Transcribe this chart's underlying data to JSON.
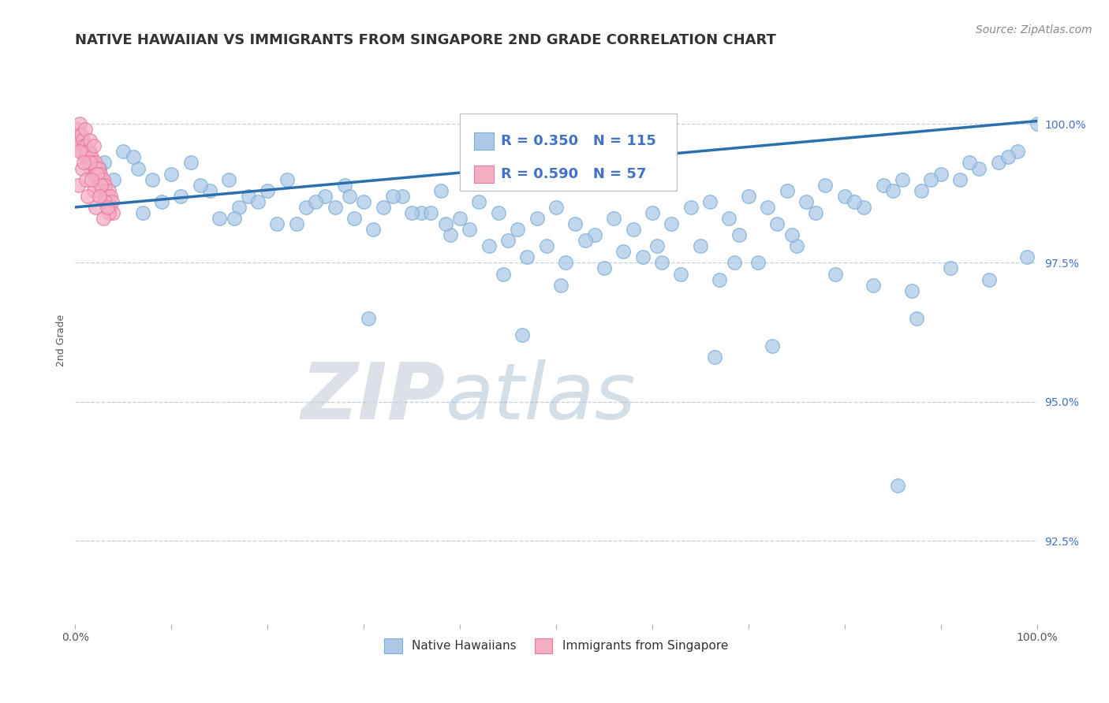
{
  "title": "NATIVE HAWAIIAN VS IMMIGRANTS FROM SINGAPORE 2ND GRADE CORRELATION CHART",
  "source_text": "Source: ZipAtlas.com",
  "ylabel": "2nd Grade",
  "watermark_zip": "ZIP",
  "watermark_atlas": "atlas",
  "xlim": [
    0.0,
    100.0
  ],
  "ylim": [
    91.0,
    101.2
  ],
  "yticks": [
    92.5,
    95.0,
    97.5,
    100.0
  ],
  "ytick_labels": [
    "92.5%",
    "95.0%",
    "97.5%",
    "100.0%"
  ],
  "legend_r1": "R = 0.350",
  "legend_n1": "N = 115",
  "legend_r2": "R = 0.590",
  "legend_n2": "N = 57",
  "blue_color": "#aec9e8",
  "pink_color": "#f4afc3",
  "blue_edge": "#7aaed6",
  "pink_edge": "#e87aa0",
  "trend_color": "#2c6fad",
  "trend_x0": 0.0,
  "trend_x1": 100.0,
  "trend_y0": 98.5,
  "trend_y1": 100.05,
  "dashed_color": "#c0c8d8",
  "blue_scatter_x": [
    1.5,
    3.0,
    5.0,
    6.5,
    8.0,
    10.0,
    12.0,
    14.0,
    16.0,
    18.0,
    20.0,
    22.0,
    24.0,
    26.0,
    28.0,
    30.0,
    32.0,
    34.0,
    36.0,
    38.0,
    40.0,
    42.0,
    44.0,
    46.0,
    48.0,
    50.0,
    52.0,
    54.0,
    56.0,
    58.0,
    60.0,
    62.0,
    64.0,
    66.0,
    68.0,
    70.0,
    72.0,
    74.0,
    76.0,
    78.0,
    80.0,
    82.0,
    84.0,
    86.0,
    88.0,
    90.0,
    92.0,
    94.0,
    96.0,
    98.0,
    100.0,
    4.0,
    9.0,
    13.0,
    17.0,
    21.0,
    25.0,
    29.0,
    33.0,
    37.0,
    41.0,
    45.0,
    49.0,
    53.0,
    57.0,
    61.0,
    65.0,
    69.0,
    73.0,
    77.0,
    81.0,
    85.0,
    89.0,
    93.0,
    97.0,
    7.0,
    11.0,
    15.0,
    19.0,
    23.0,
    27.0,
    31.0,
    35.0,
    39.0,
    43.0,
    47.0,
    51.0,
    55.0,
    59.0,
    63.0,
    67.0,
    71.0,
    75.0,
    79.0,
    83.0,
    87.0,
    91.0,
    95.0,
    99.0,
    2.5,
    6.0,
    16.5,
    28.5,
    38.5,
    44.5,
    50.5,
    60.5,
    68.5,
    74.5,
    85.5,
    30.5,
    46.5,
    66.5,
    72.5,
    87.5
  ],
  "blue_scatter_y": [
    99.5,
    99.3,
    99.5,
    99.2,
    99.0,
    99.1,
    99.3,
    98.8,
    99.0,
    98.7,
    98.8,
    99.0,
    98.5,
    98.7,
    98.9,
    98.6,
    98.5,
    98.7,
    98.4,
    98.8,
    98.3,
    98.6,
    98.4,
    98.1,
    98.3,
    98.5,
    98.2,
    98.0,
    98.3,
    98.1,
    98.4,
    98.2,
    98.5,
    98.6,
    98.3,
    98.7,
    98.5,
    98.8,
    98.6,
    98.9,
    98.7,
    98.5,
    98.9,
    99.0,
    98.8,
    99.1,
    99.0,
    99.2,
    99.3,
    99.5,
    100.0,
    99.0,
    98.6,
    98.9,
    98.5,
    98.2,
    98.6,
    98.3,
    98.7,
    98.4,
    98.1,
    97.9,
    97.8,
    97.9,
    97.7,
    97.5,
    97.8,
    98.0,
    98.2,
    98.4,
    98.6,
    98.8,
    99.0,
    99.3,
    99.4,
    98.4,
    98.7,
    98.3,
    98.6,
    98.2,
    98.5,
    98.1,
    98.4,
    98.0,
    97.8,
    97.6,
    97.5,
    97.4,
    97.6,
    97.3,
    97.2,
    97.5,
    97.8,
    97.3,
    97.1,
    97.0,
    97.4,
    97.2,
    97.6,
    99.2,
    99.4,
    98.3,
    98.7,
    98.2,
    97.3,
    97.1,
    97.8,
    97.5,
    98.0,
    93.5,
    96.5,
    96.2,
    95.8,
    96.0,
    96.5
  ],
  "pink_scatter_x": [
    0.2,
    0.3,
    0.4,
    0.5,
    0.5,
    0.6,
    0.7,
    0.8,
    0.9,
    1.0,
    1.0,
    1.1,
    1.2,
    1.3,
    1.4,
    1.5,
    1.6,
    1.7,
    1.8,
    1.9,
    2.0,
    2.1,
    2.2,
    2.3,
    2.4,
    2.5,
    2.6,
    2.7,
    2.8,
    2.9,
    3.0,
    3.1,
    3.2,
    3.3,
    3.4,
    3.5,
    3.6,
    3.7,
    3.8,
    3.9,
    0.3,
    0.7,
    1.1,
    1.5,
    1.9,
    2.3,
    2.7,
    3.1,
    3.5,
    0.5,
    0.9,
    1.3,
    1.7,
    2.1,
    2.5,
    2.9,
    3.3
  ],
  "pink_scatter_y": [
    99.9,
    99.8,
    99.7,
    100.0,
    99.6,
    99.8,
    99.5,
    99.7,
    99.6,
    99.9,
    99.4,
    99.6,
    99.5,
    99.3,
    99.5,
    99.7,
    99.2,
    99.4,
    99.3,
    99.6,
    99.1,
    99.3,
    99.2,
    99.0,
    99.2,
    98.9,
    99.1,
    99.0,
    98.8,
    99.0,
    98.7,
    98.9,
    98.8,
    98.7,
    98.6,
    98.8,
    98.5,
    98.7,
    98.6,
    98.4,
    98.9,
    99.2,
    99.0,
    99.3,
    98.8,
    99.1,
    98.9,
    98.6,
    98.4,
    99.5,
    99.3,
    98.7,
    99.0,
    98.5,
    98.7,
    98.3,
    98.5
  ],
  "title_fontsize": 13,
  "label_fontsize": 9,
  "tick_fontsize": 10,
  "legend_fontsize": 13,
  "source_fontsize": 10
}
